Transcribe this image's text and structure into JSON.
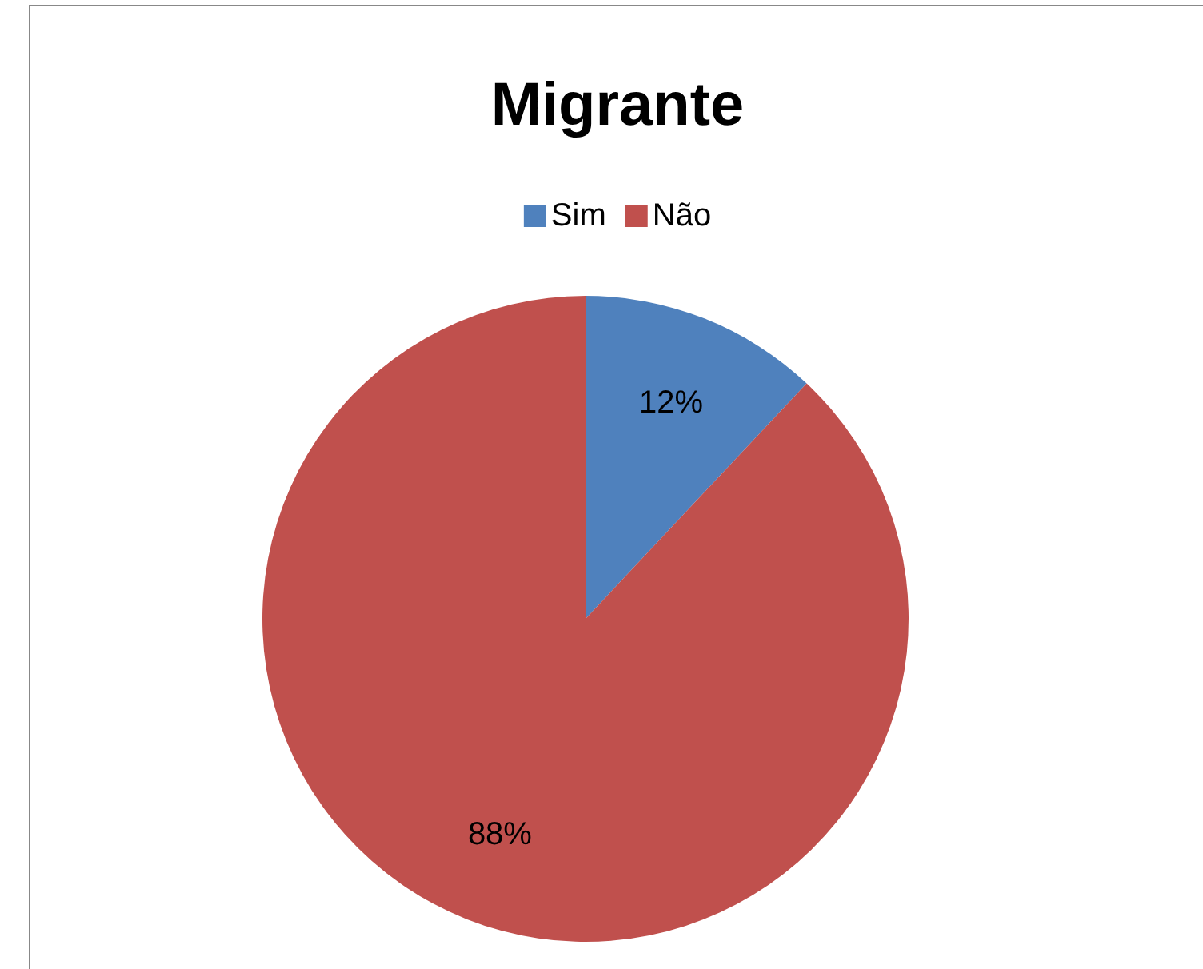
{
  "chart_data": {
    "type": "pie",
    "title": "Migrante",
    "categories": [
      "Sim",
      "Não"
    ],
    "values": [
      12,
      88
    ],
    "colors": [
      "#4f81bd",
      "#c0504d"
    ],
    "legend": "top",
    "value_labels": [
      "12%",
      "88%"
    ]
  }
}
